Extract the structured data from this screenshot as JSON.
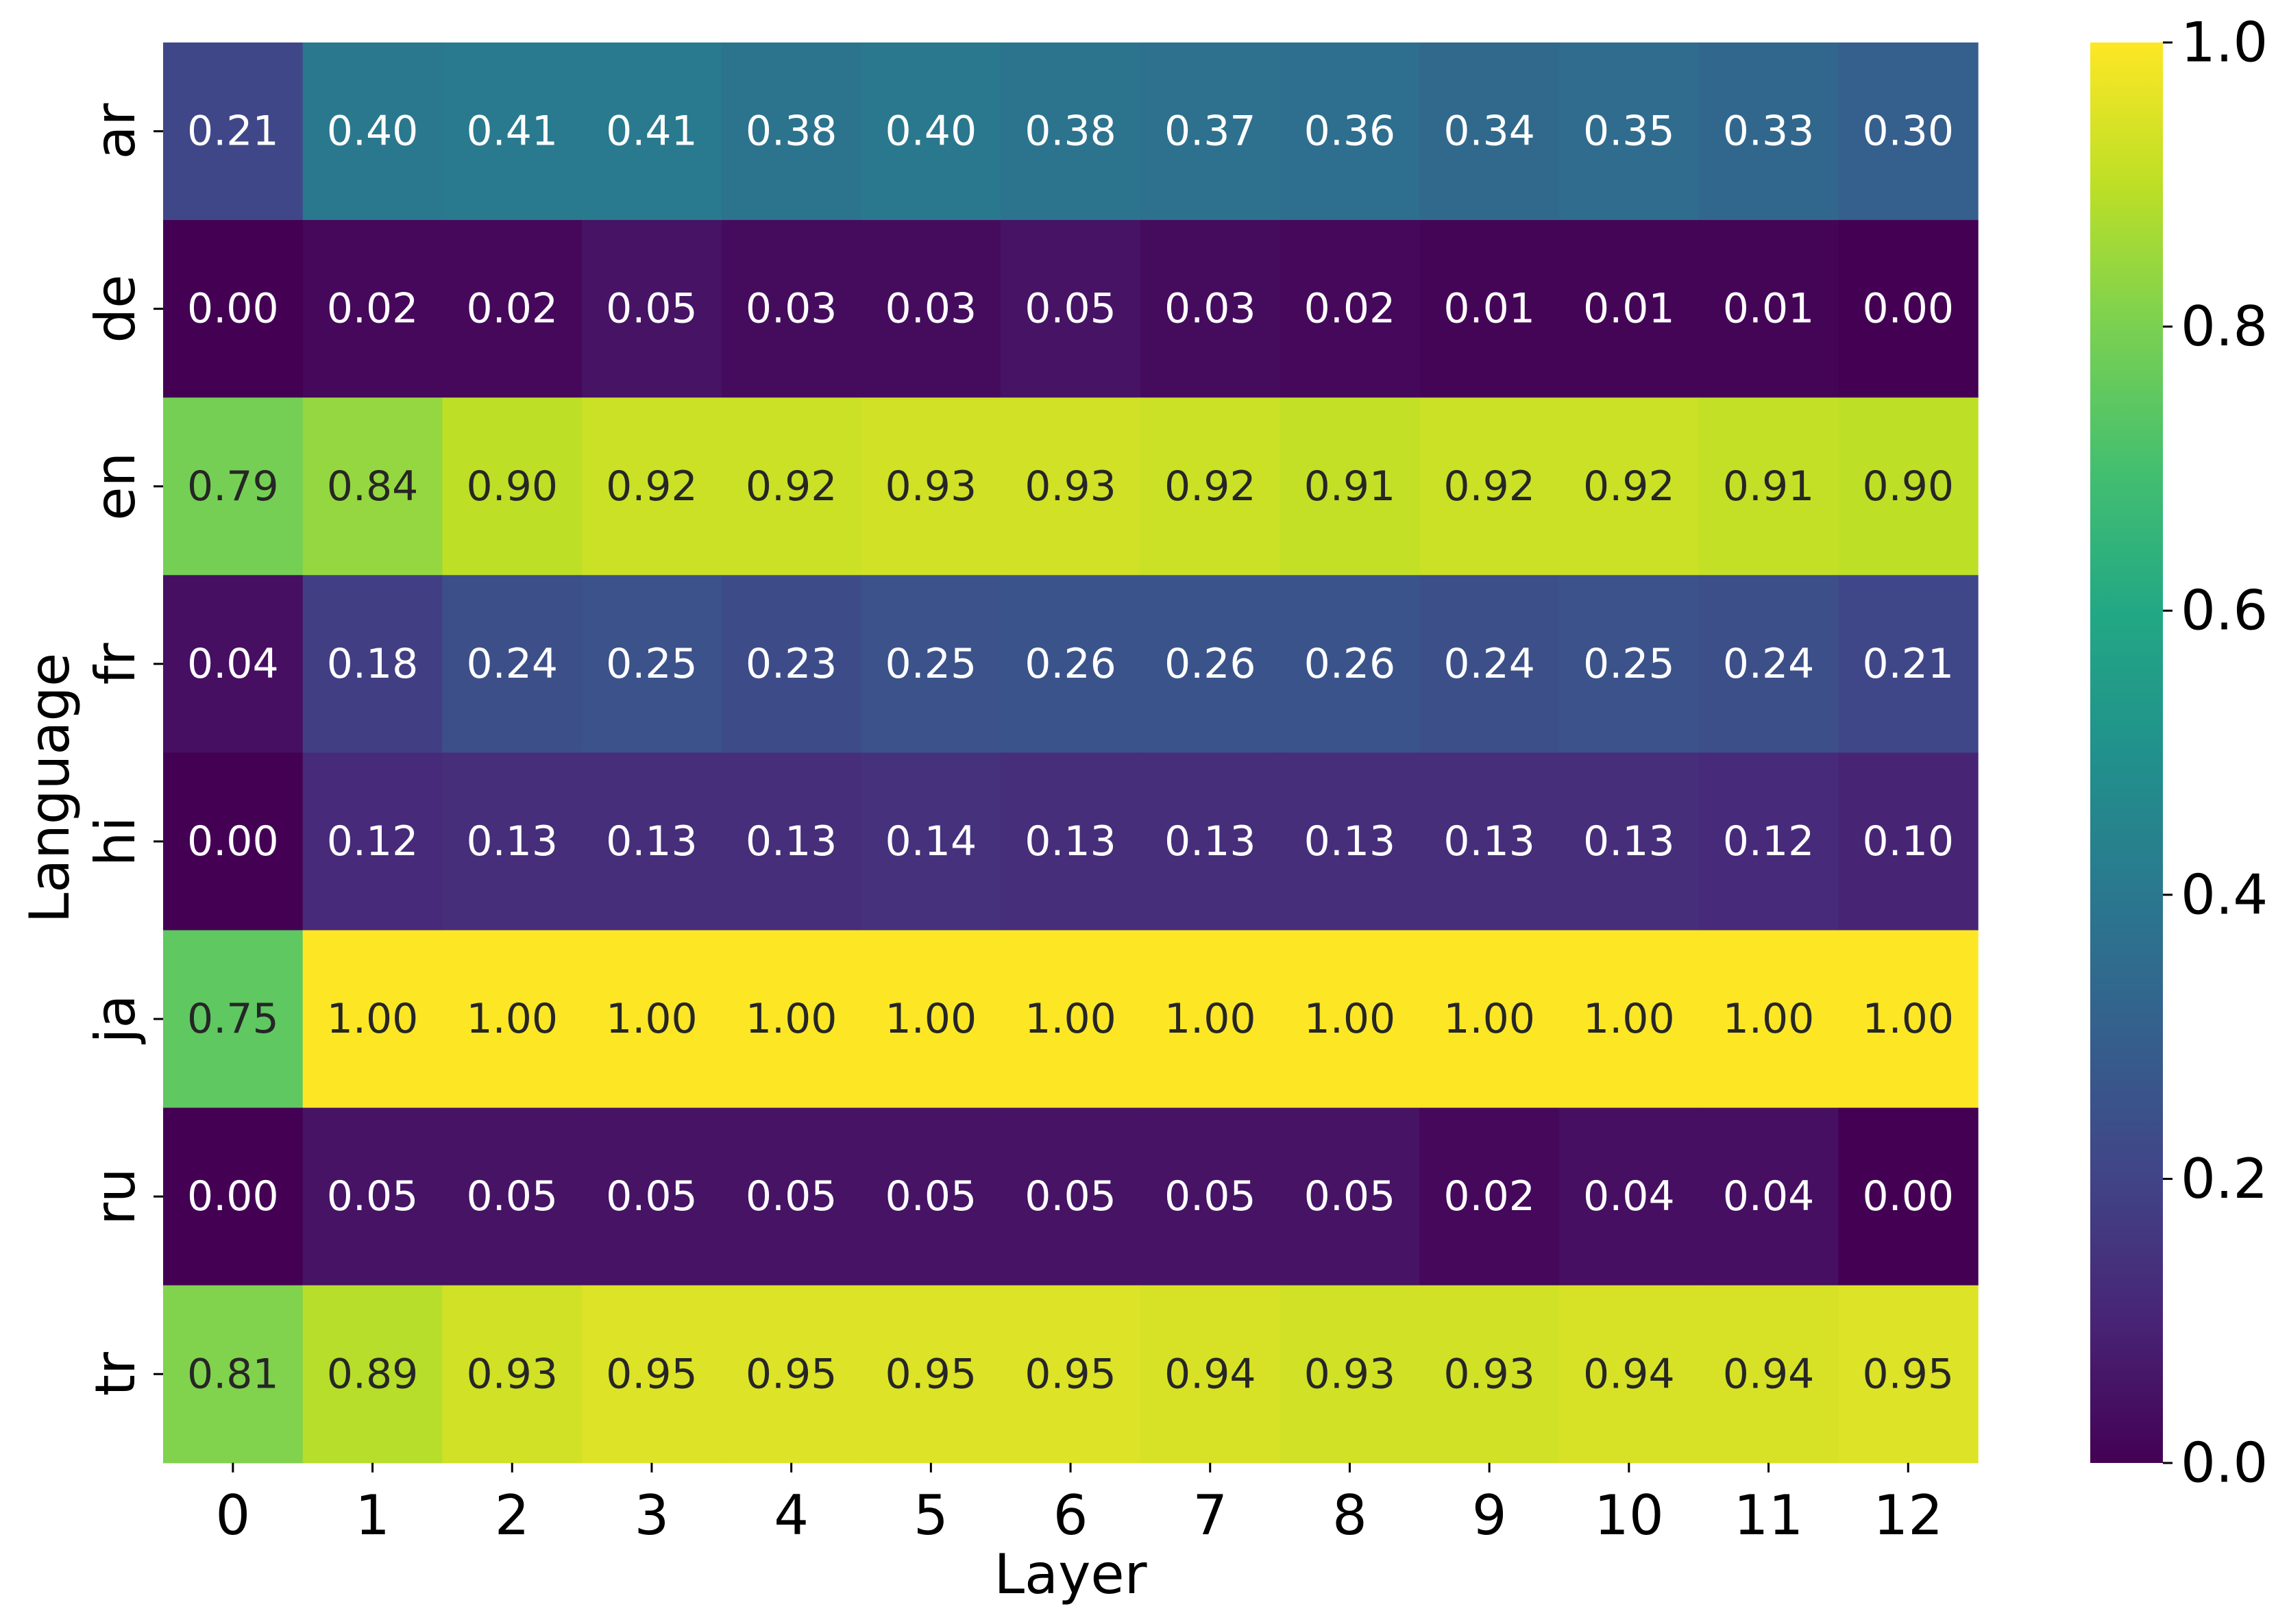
{
  "chart_data": {
    "type": "heatmap",
    "title": "",
    "xlabel": "Layer",
    "ylabel": "Language",
    "x_categories": [
      "0",
      "1",
      "2",
      "3",
      "4",
      "5",
      "6",
      "7",
      "8",
      "9",
      "10",
      "11",
      "12"
    ],
    "y_categories": [
      "ar",
      "de",
      "en",
      "fr",
      "hi",
      "ja",
      "ru",
      "tr"
    ],
    "values": [
      [
        0.21,
        0.4,
        0.41,
        0.41,
        0.38,
        0.4,
        0.38,
        0.37,
        0.36,
        0.34,
        0.35,
        0.33,
        0.3
      ],
      [
        0.0,
        0.02,
        0.02,
        0.05,
        0.03,
        0.03,
        0.05,
        0.03,
        0.02,
        0.01,
        0.01,
        0.01,
        0.0
      ],
      [
        0.79,
        0.84,
        0.9,
        0.92,
        0.92,
        0.93,
        0.93,
        0.92,
        0.91,
        0.92,
        0.92,
        0.91,
        0.9
      ],
      [
        0.04,
        0.18,
        0.24,
        0.25,
        0.23,
        0.25,
        0.26,
        0.26,
        0.26,
        0.24,
        0.25,
        0.24,
        0.21
      ],
      [
        0.0,
        0.12,
        0.13,
        0.13,
        0.13,
        0.14,
        0.13,
        0.13,
        0.13,
        0.13,
        0.13,
        0.12,
        0.1
      ],
      [
        0.75,
        1.0,
        1.0,
        1.0,
        1.0,
        1.0,
        1.0,
        1.0,
        1.0,
        1.0,
        1.0,
        1.0,
        1.0
      ],
      [
        0.0,
        0.05,
        0.05,
        0.05,
        0.05,
        0.05,
        0.05,
        0.05,
        0.05,
        0.02,
        0.04,
        0.04,
        0.0
      ],
      [
        0.81,
        0.89,
        0.93,
        0.95,
        0.95,
        0.95,
        0.95,
        0.94,
        0.93,
        0.93,
        0.94,
        0.94,
        0.95
      ]
    ],
    "colormap": "viridis",
    "vmin": 0.0,
    "vmax": 1.0,
    "colorbar_ticks": [
      "0.0",
      "0.2",
      "0.4",
      "0.6",
      "0.8",
      "1.0"
    ],
    "annotations": true,
    "annotation_format": "0.00",
    "annotation_colors": {
      "dark": "#262626",
      "light": "#ffffff"
    }
  }
}
